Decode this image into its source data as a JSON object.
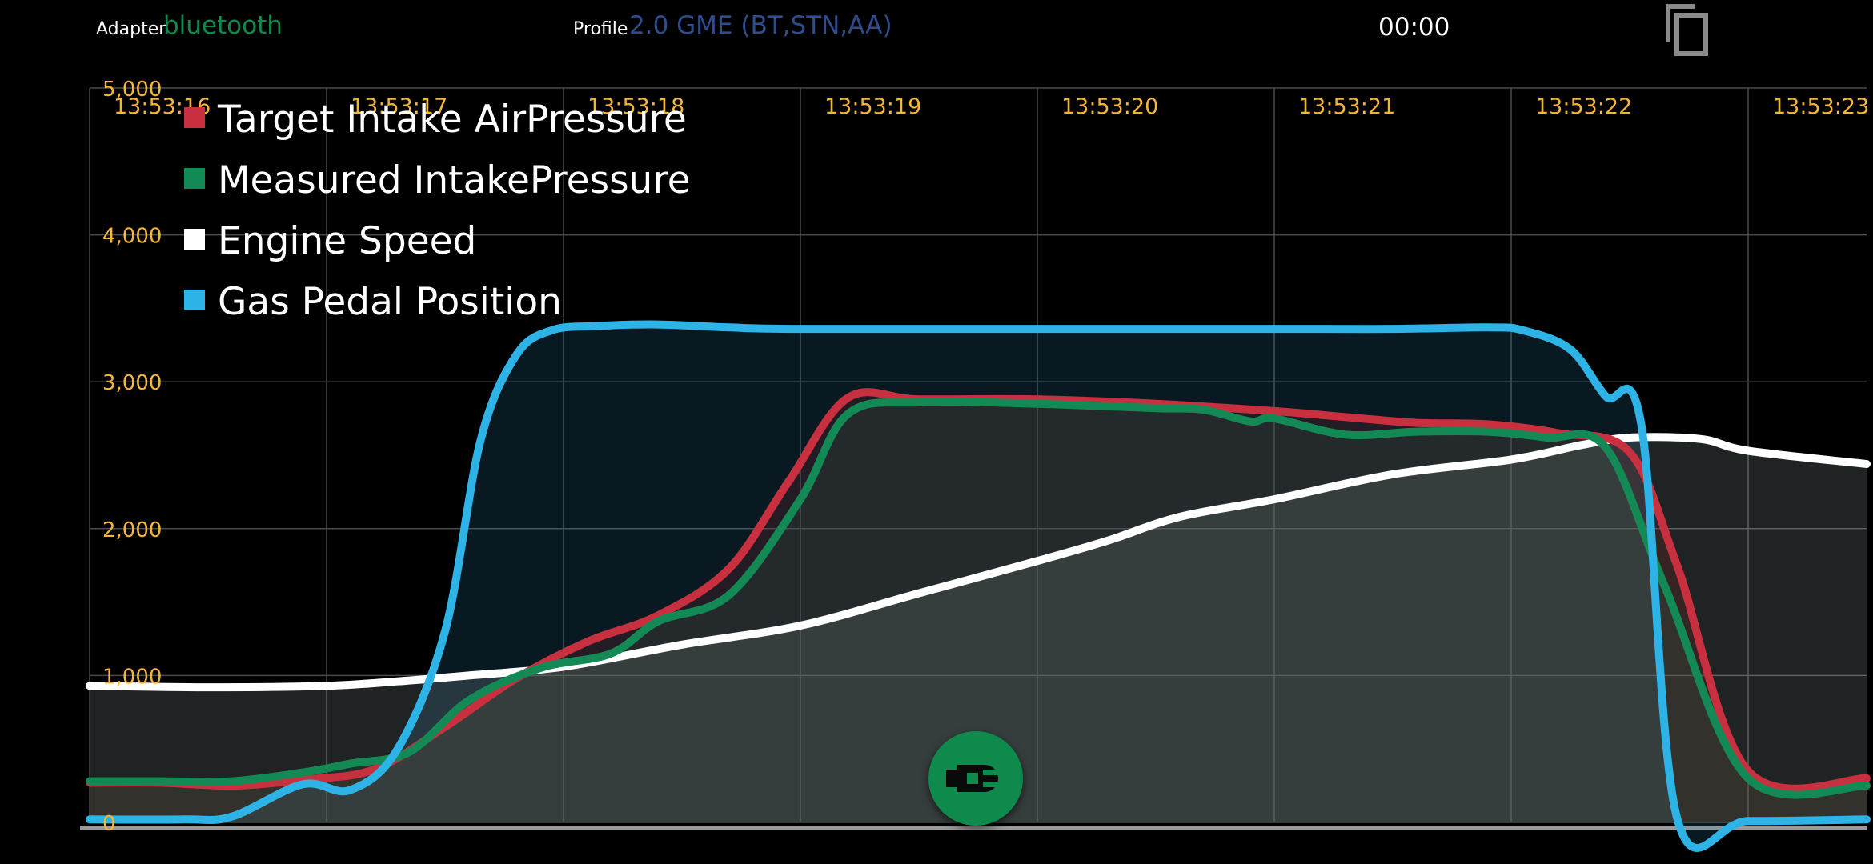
{
  "header": {
    "adapter_label": "Adapter",
    "adapter_value": "bluetooth",
    "profile_label": "Profile",
    "profile_value": "2.0 GME (BT,STN,AA)",
    "timer": "00:00",
    "copy_icon": "copy-icon"
  },
  "colors": {
    "background": "#000000",
    "tick_label": "#f4b637",
    "adapter_value": "#0e8a4c",
    "profile_value": "#2f4c8c",
    "target_intake": "#c8303f",
    "measured_intake": "#138a55",
    "engine_speed": "#ffffff",
    "gas_pedal": "#2db3e6",
    "connect_button": "#0e8a4c"
  },
  "connect_button": {
    "icon": "plug-connect-icon"
  },
  "chart_data": {
    "type": "area",
    "title": "",
    "xlabel": "",
    "ylabel": "",
    "ylim": [
      0,
      5000
    ],
    "xlim": [
      "13:53:16.00",
      "13:53:23.50"
    ],
    "x_ticks": [
      "13:53:16",
      "13:53:17",
      "13:53:18",
      "13:53:19",
      "13:53:20",
      "13:53:21",
      "13:53:22",
      "13:53:23"
    ],
    "y_ticks": [
      "0",
      "1,000",
      "2,000",
      "3,000",
      "4,000",
      "5,000"
    ],
    "grid": true,
    "legend_position": "top-left",
    "series": [
      {
        "name": "Target Intake AirPressure",
        "color": "#c8303f",
        "x": [
          "13:53:16.00",
          "13:53:16.30",
          "13:53:16.60",
          "13:53:16.90",
          "13:53:17.20",
          "13:53:17.50",
          "13:53:17.80",
          "13:53:18.10",
          "13:53:18.40",
          "13:53:18.70",
          "13:53:18.95",
          "13:53:19.20",
          "13:53:19.50",
          "13:53:20.00",
          "13:53:20.50",
          "13:53:21.00",
          "13:53:21.30",
          "13:53:21.60",
          "13:53:21.90",
          "13:53:22.20",
          "13:53:22.50",
          "13:53:22.70",
          "13:53:23.00",
          "13:53:23.50"
        ],
        "values": [
          270,
          270,
          250,
          290,
          360,
          650,
          980,
          1230,
          1410,
          1730,
          2320,
          2890,
          2880,
          2880,
          2850,
          2800,
          2760,
          2720,
          2710,
          2650,
          2520,
          1750,
          350,
          300
        ]
      },
      {
        "name": "Measured IntakePressure",
        "color": "#138a55",
        "x": [
          "13:53:16.00",
          "13:53:16.30",
          "13:53:16.60",
          "13:53:16.90",
          "13:53:17.10",
          "13:53:17.35",
          "13:53:17.60",
          "13:53:17.90",
          "13:53:18.20",
          "13:53:18.40",
          "13:53:18.70",
          "13:53:19.00",
          "13:53:19.20",
          "13:53:19.50",
          "13:53:20.00",
          "13:53:20.50",
          "13:53:20.70",
          "13:53:20.90",
          "13:53:21.00",
          "13:53:21.30",
          "13:53:21.60",
          "13:53:21.90",
          "13:53:22.15",
          "13:53:22.40",
          "13:53:22.65",
          "13:53:23.00",
          "13:53:23.50"
        ],
        "values": [
          280,
          280,
          280,
          340,
          400,
          480,
          830,
          1050,
          1150,
          1370,
          1550,
          2200,
          2780,
          2860,
          2850,
          2820,
          2810,
          2730,
          2750,
          2640,
          2660,
          2660,
          2620,
          2550,
          1600,
          300,
          250
        ]
      },
      {
        "name": "Engine Speed",
        "color": "#ffffff",
        "x": [
          "13:53:16.00",
          "13:53:16.50",
          "13:53:17.00",
          "13:53:17.30",
          "13:53:17.60",
          "13:53:18.00",
          "13:53:18.50",
          "13:53:19.00",
          "13:53:19.50",
          "13:53:20.00",
          "13:53:20.30",
          "13:53:20.60",
          "13:53:21.00",
          "13:53:21.50",
          "13:53:22.00",
          "13:53:22.30",
          "13:53:22.50",
          "13:53:22.80",
          "13:53:23.00",
          "13:53:23.50"
        ],
        "values": [
          930,
          920,
          930,
          960,
          1000,
          1060,
          1210,
          1340,
          1560,
          1780,
          1920,
          2080,
          2200,
          2370,
          2470,
          2570,
          2620,
          2610,
          2530,
          2440
        ]
      },
      {
        "name": "Gas Pedal Position",
        "color": "#2db3e6",
        "x": [
          "13:53:16.00",
          "13:53:16.40",
          "13:53:16.60",
          "13:53:16.90",
          "13:53:17.10",
          "13:53:17.30",
          "13:53:17.50",
          "13:53:17.65",
          "13:53:17.80",
          "13:53:17.95",
          "13:53:18.15",
          "13:53:18.40",
          "13:53:18.70",
          "13:53:19.00",
          "13:53:20.00",
          "13:53:21.00",
          "13:53:21.50",
          "13:53:21.90",
          "13:53:22.05",
          "13:53:22.25",
          "13:53:22.40",
          "13:53:22.55",
          "13:53:22.70",
          "13:53:23.00",
          "13:53:23.50"
        ],
        "values": [
          20,
          20,
          40,
          260,
          220,
          500,
          1300,
          2600,
          3180,
          3350,
          3380,
          3390,
          3370,
          3360,
          3360,
          3360,
          3360,
          3370,
          3350,
          3220,
          2900,
          2700,
          30,
          10,
          20
        ]
      }
    ]
  }
}
